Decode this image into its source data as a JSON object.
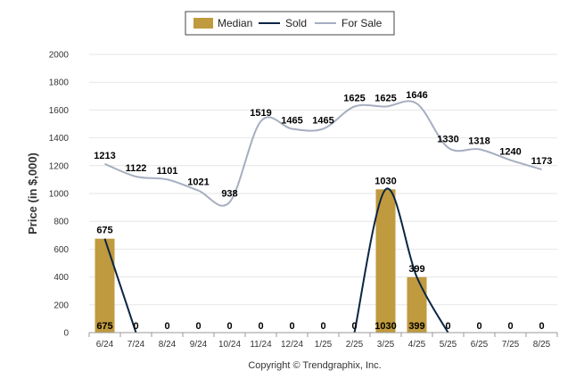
{
  "chart_data": {
    "type": "bar",
    "title": "",
    "xlabel": "",
    "ylabel": "Price (in $,000)",
    "categories": [
      "6/24",
      "7/24",
      "8/24",
      "9/24",
      "10/24",
      "11/24",
      "12/24",
      "1/25",
      "2/25",
      "3/25",
      "4/25",
      "5/25",
      "6/25",
      "7/25",
      "8/25"
    ],
    "ylim": [
      0,
      2000
    ],
    "yticks": [
      0,
      200,
      400,
      600,
      800,
      1000,
      1200,
      1400,
      1600,
      1800,
      2000
    ],
    "grid": true,
    "legend_position": "top-center",
    "series": [
      {
        "name": "Median",
        "type": "bar",
        "color": "#c09a3e",
        "values": [
          675,
          0,
          0,
          0,
          0,
          0,
          0,
          0,
          0,
          1030,
          399,
          0,
          0,
          0,
          0
        ]
      },
      {
        "name": "Sold",
        "type": "line",
        "color": "#0b2545",
        "values": [
          675,
          0,
          0,
          0,
          0,
          0,
          0,
          0,
          0,
          1030,
          399,
          0,
          0,
          0,
          0
        ]
      },
      {
        "name": "For Sale",
        "type": "line",
        "color": "#a6aec0",
        "values": [
          1213,
          1122,
          1101,
          1021,
          938,
          1519,
          1465,
          1465,
          1625,
          1625,
          1646,
          1330,
          1318,
          1240,
          1173
        ]
      }
    ]
  },
  "footer": {
    "copyright": "Copyright © Trendgraphix, Inc."
  }
}
